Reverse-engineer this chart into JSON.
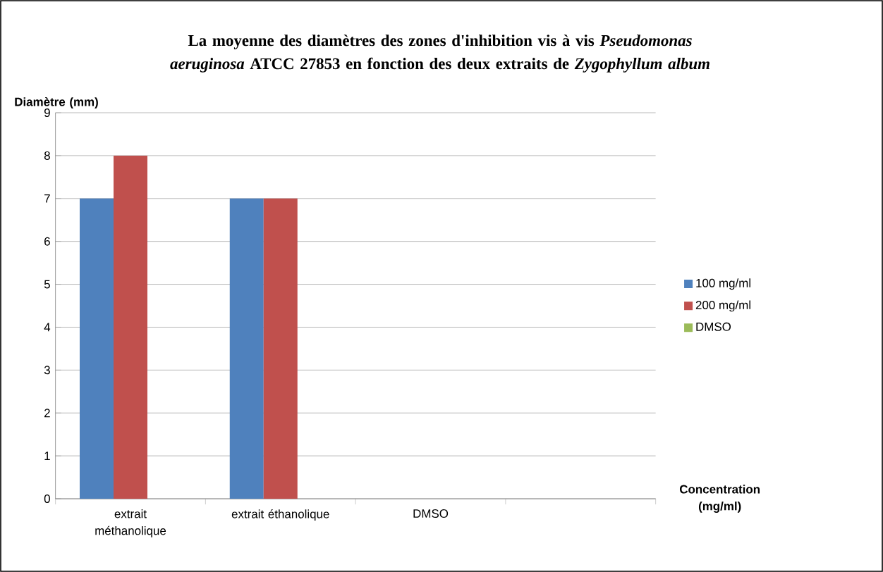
{
  "chart_data": {
    "type": "bar",
    "title": "La moyenne des diamètres des zones d'inhibition vis à vis *Pseudomonas aeruginosa* ATCC 27853 en fonction des deux extraits de *Zygophyllum album*",
    "xlabel": "Concentration (mg/ml)",
    "ylabel": "Diamètre (mm)",
    "categories": [
      "extrait méthanolique",
      "extrait éthanolique",
      "DMSO",
      null
    ],
    "series": [
      {
        "name": "100 mg/ml",
        "color": "#4f81bd",
        "values": [
          7,
          7,
          null,
          null
        ]
      },
      {
        "name": "200 mg/ml",
        "color": "#c0504d",
        "values": [
          8,
          7,
          null,
          null
        ]
      },
      {
        "name": "DMSO",
        "color": "#9bbb59",
        "values": [
          null,
          null,
          0,
          null
        ]
      }
    ],
    "ylim": [
      0,
      9
    ],
    "yticks": [
      0,
      1,
      2,
      3,
      4,
      5,
      6,
      7,
      8,
      9
    ],
    "grid": "y",
    "legend": "right"
  }
}
